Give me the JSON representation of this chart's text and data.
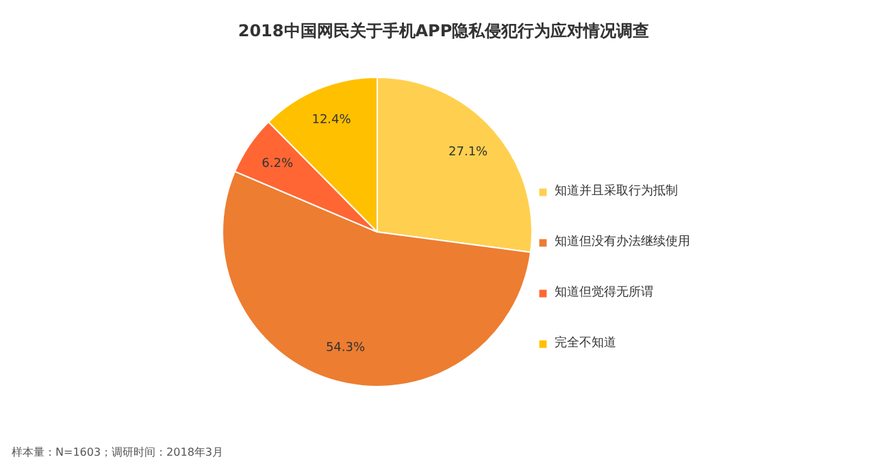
{
  "chart_data": {
    "type": "pie",
    "title": "2018中国网民关于手机APP隐私侵犯行为应对情况调查",
    "categories": [
      "知道并且采取行为抵制",
      "知道但没有办法继续使用",
      "知道但觉得无所谓",
      "完全不知道"
    ],
    "values": [
      27.1,
      54.3,
      6.2,
      12.4
    ],
    "colors": [
      "#ffd04f",
      "#ed7d31",
      "#ff6633",
      "#ffc000"
    ],
    "value_labels": [
      "27.1%",
      "54.3%",
      "6.2%",
      "12.4%"
    ],
    "legend": "right",
    "annotations": [
      "样本量：N=1603；调研时间：2018年3月"
    ]
  }
}
